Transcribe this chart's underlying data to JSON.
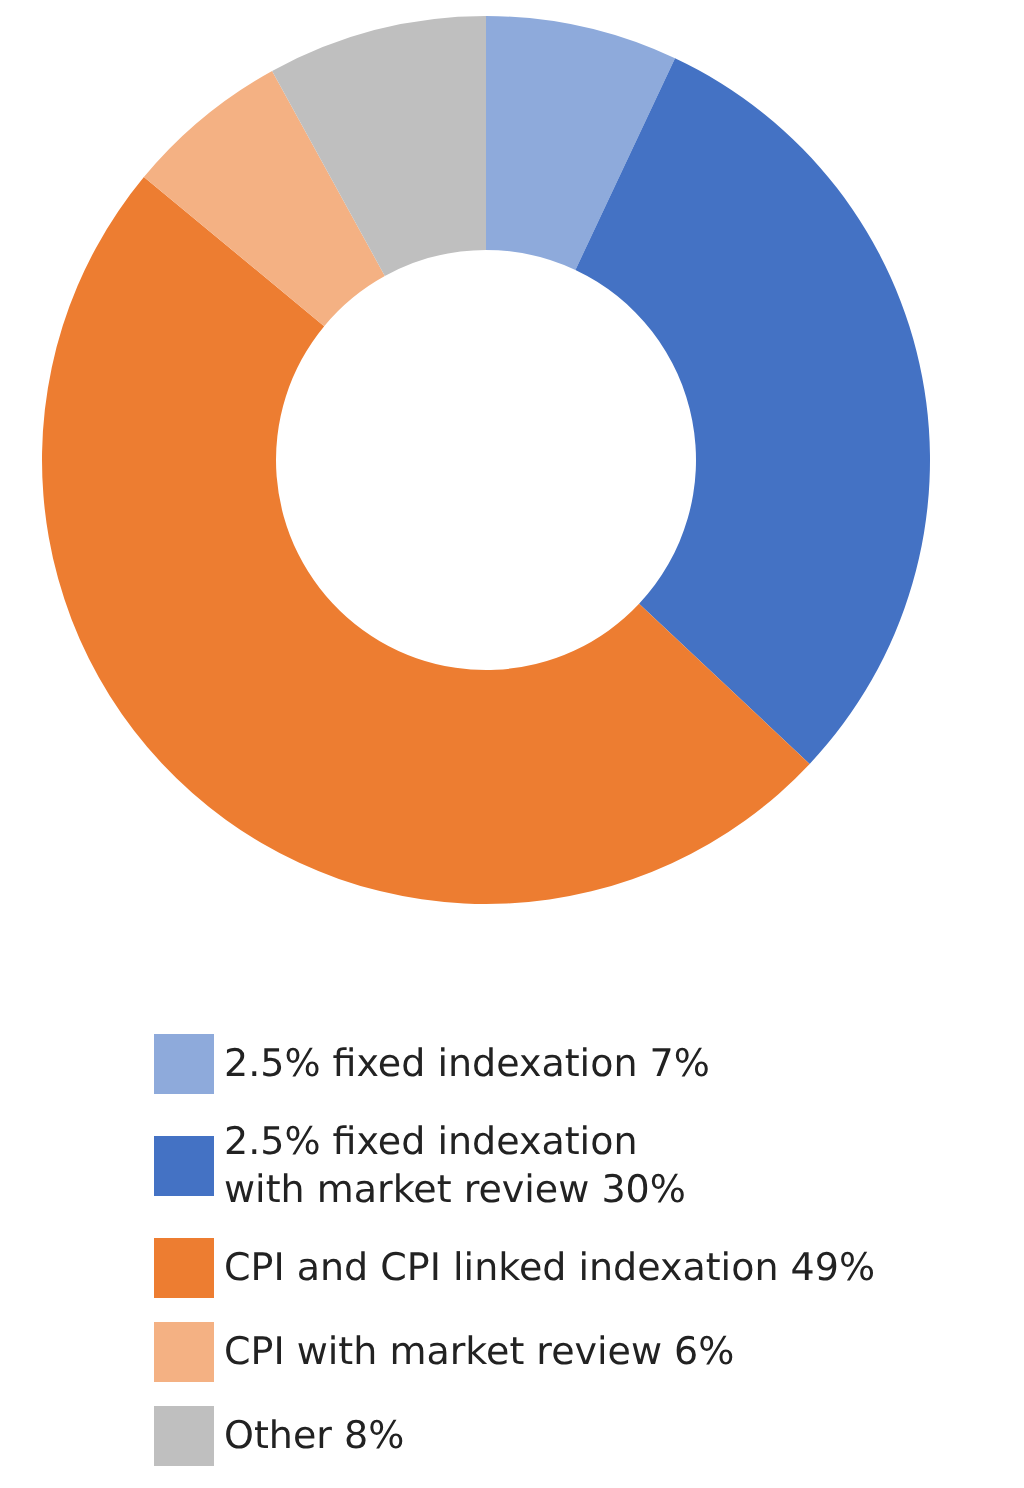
{
  "chart_data": {
    "type": "donut",
    "categories": [
      "2.5% fixed indexation 7%",
      "2.5% fixed indexation\nwith market review 30%",
      "CPI and CPI linked indexation 49%",
      "CPI with market review 6%",
      "Other 8%"
    ],
    "values": [
      7,
      30,
      49,
      6,
      8
    ],
    "colors": [
      "#8eaadb",
      "#4472c4",
      "#ed7d31",
      "#f4b183",
      "#bfbfbf"
    ],
    "legend": "bottom"
  }
}
